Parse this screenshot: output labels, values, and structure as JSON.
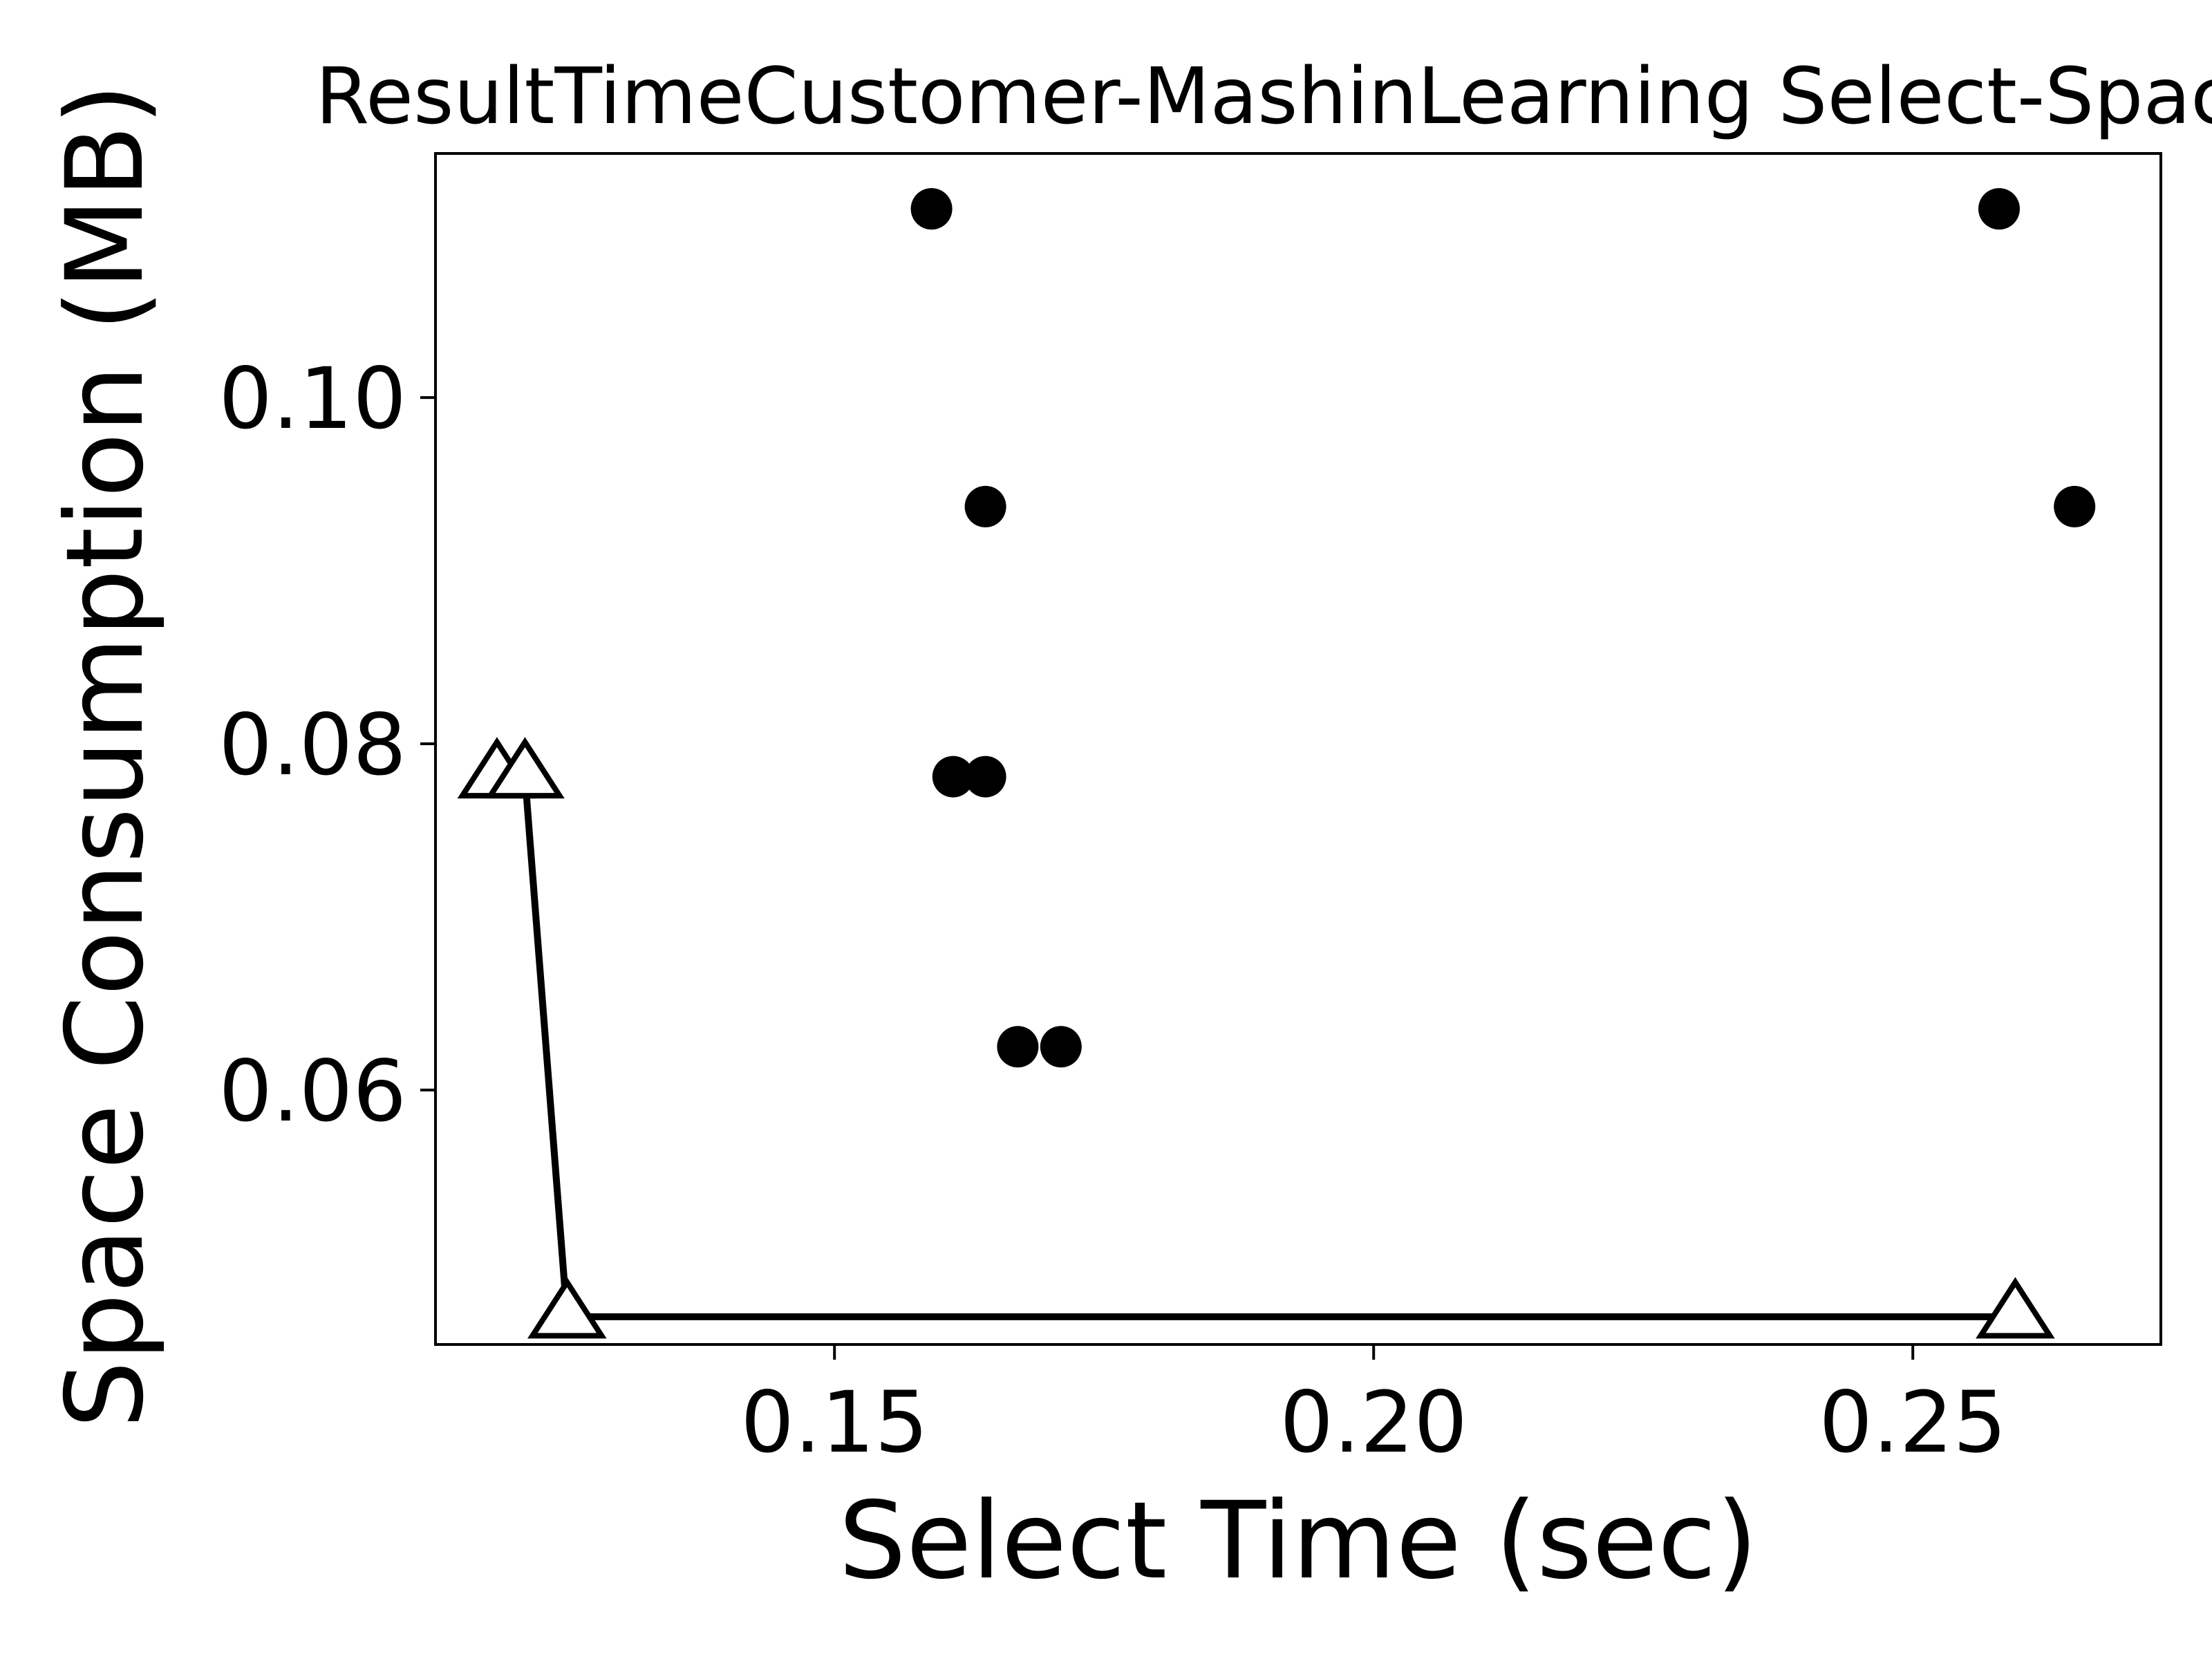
{
  "chart_data": {
    "type": "scatter",
    "title": "ResultTimeCustomer-MashinLearning Select-Space",
    "xlabel": "Select Time (sec)",
    "ylabel": "Space Consumption (MB)",
    "xlim": [
      0.113,
      0.273
    ],
    "ylim": [
      0.0453,
      0.1141
    ],
    "xticks": [
      0.15,
      0.2,
      0.25
    ],
    "xtick_labels": [
      "0.15",
      "0.20",
      "0.25"
    ],
    "yticks": [
      0.06,
      0.08,
      0.1
    ],
    "ytick_labels": [
      "0.06",
      "0.08",
      "0.10"
    ],
    "grid": false,
    "legend": "none",
    "series": [
      {
        "marker": "circle",
        "color": "#000000",
        "line": false,
        "points": [
          {
            "x": 0.159,
            "y": 0.1109
          },
          {
            "x": 0.258,
            "y": 0.1109
          },
          {
            "x": 0.164,
            "y": 0.0937
          },
          {
            "x": 0.265,
            "y": 0.0937
          },
          {
            "x": 0.161,
            "y": 0.0781
          },
          {
            "x": 0.164,
            "y": 0.0781
          },
          {
            "x": 0.167,
            "y": 0.0625
          },
          {
            "x": 0.171,
            "y": 0.0625
          }
        ]
      },
      {
        "marker": "triangle-open",
        "color": "#000000",
        "line": true,
        "points": [
          {
            "x": 0.1187,
            "y": 0.0781
          },
          {
            "x": 0.1213,
            "y": 0.0781
          },
          {
            "x": 0.1252,
            "y": 0.0469
          },
          {
            "x": 0.2595,
            "y": 0.0469
          }
        ]
      }
    ]
  }
}
